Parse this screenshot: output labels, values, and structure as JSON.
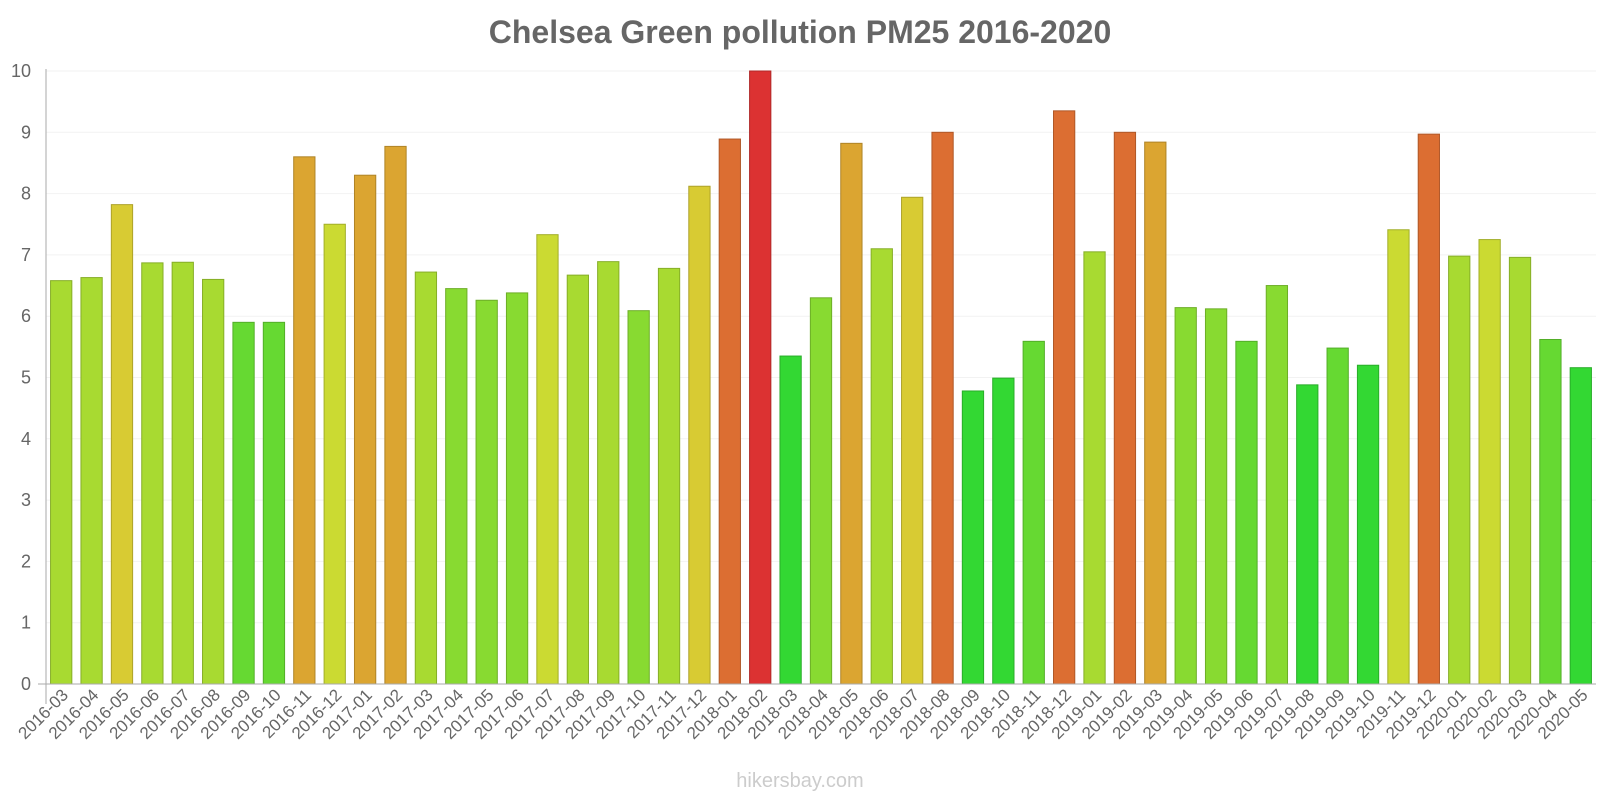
{
  "chart_data": {
    "type": "bar",
    "title": "Chelsea Green pollution PM25 2016-2020",
    "xlabel": "",
    "ylabel": "",
    "ylim": [
      0,
      10
    ],
    "y_ticks": [
      0,
      1,
      2,
      3,
      4,
      5,
      6,
      7,
      8,
      9,
      10
    ],
    "grid": true,
    "categories": [
      "2016-03",
      "2016-04",
      "2016-05",
      "2016-06",
      "2016-07",
      "2016-08",
      "2016-09",
      "2016-10",
      "2016-11",
      "2016-12",
      "2017-01",
      "2017-02",
      "2017-03",
      "2017-04",
      "2017-05",
      "2017-06",
      "2017-07",
      "2017-08",
      "2017-09",
      "2017-10",
      "2017-11",
      "2017-12",
      "2018-01",
      "2018-02",
      "2018-03",
      "2018-04",
      "2018-05",
      "2018-06",
      "2018-07",
      "2018-08",
      "2018-09",
      "2018-10",
      "2018-11",
      "2018-12",
      "2019-01",
      "2019-02",
      "2019-03",
      "2019-04",
      "2019-05",
      "2019-06",
      "2019-07",
      "2019-08",
      "2019-09",
      "2019-10",
      "2019-11",
      "2019-12",
      "2020-01",
      "2020-02",
      "2020-03",
      "2020-04",
      "2020-05"
    ],
    "values": [
      6.58,
      6.63,
      7.82,
      6.87,
      6.88,
      6.6,
      5.9,
      5.9,
      8.6,
      7.5,
      8.3,
      8.77,
      6.72,
      6.45,
      6.26,
      6.38,
      7.33,
      6.67,
      6.89,
      6.09,
      6.78,
      8.12,
      8.89,
      10.0,
      5.35,
      6.3,
      8.82,
      7.1,
      7.94,
      9.0,
      4.78,
      4.99,
      5.59,
      9.35,
      7.05,
      9.0,
      8.84,
      6.14,
      6.12,
      5.59,
      6.5,
      4.88,
      5.48,
      5.2,
      7.41,
      8.97,
      6.98,
      7.25,
      6.96,
      5.62,
      5.16
    ],
    "colors": [
      "#a8da31",
      "#a8da31",
      "#d8cb33",
      "#a8da31",
      "#a8da31",
      "#a8da31",
      "#66d932",
      "#66d932",
      "#dba531",
      "#cbda32",
      "#dba531",
      "#dba531",
      "#a8da31",
      "#88da31",
      "#88da31",
      "#88da31",
      "#cbda32",
      "#a8da31",
      "#a8da31",
      "#88da31",
      "#a8da31",
      "#d8cb33",
      "#dc6e32",
      "#dc3232",
      "#33d833",
      "#88da31",
      "#dba531",
      "#a8da31",
      "#d8cb33",
      "#dc6e32",
      "#33d833",
      "#33d833",
      "#66d932",
      "#dc6e32",
      "#a8da31",
      "#dc6e32",
      "#dba531",
      "#88da31",
      "#88da31",
      "#66d932",
      "#88da31",
      "#33d833",
      "#66d932",
      "#33d833",
      "#cbda32",
      "#dc6e32",
      "#a8da31",
      "#cbda32",
      "#a8da31",
      "#66d932",
      "#33d833"
    ]
  },
  "watermark": "hikersbay.com"
}
